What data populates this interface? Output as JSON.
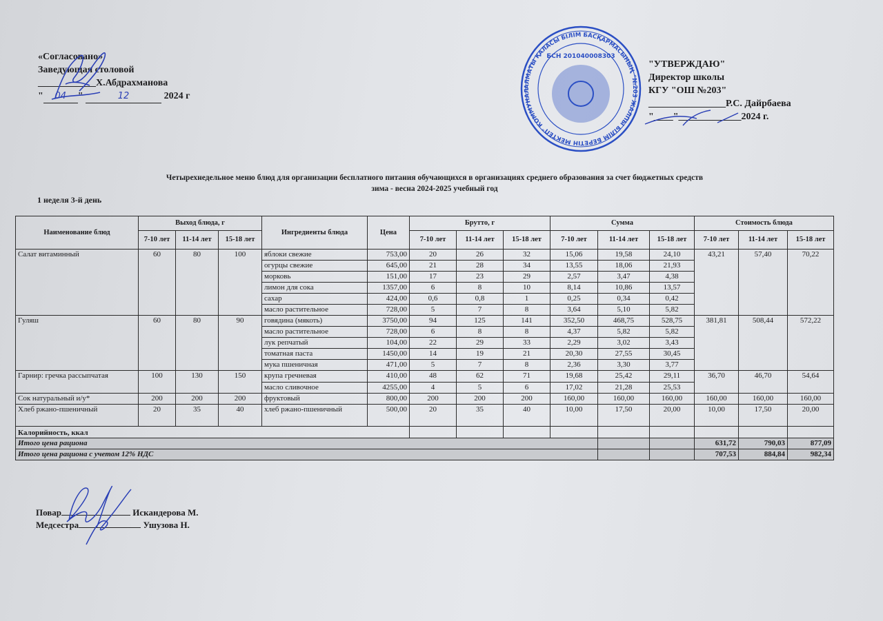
{
  "approval_left": {
    "line1": "«Согласовано»",
    "line2": "Заведующая столовой",
    "line3": "____________Х.Абдрахманова",
    "day": "04",
    "month": "12",
    "line4_prefix": "\"",
    "line4_mid": "\" ",
    "line4_suffix": " 2024 г"
  },
  "approval_right": {
    "line1": "\"УТВЕРЖДАЮ\"",
    "line2": "Директор школы",
    "line3": "КГУ \"ОШ №203\"",
    "line4": "________________Р.С. Дайрбаева",
    "line5": "\"____\"_____________2024 г."
  },
  "stamp": {
    "outer_text": "АЛМАТЫ ҚАЛАСЫ БІЛІМ БАСҚАРМАСЫНЫҢ \"№203 ЖАЛПЫ БІЛІМ БЕРЕТІН МЕКТЕП\" КОММУНАЛДЫҚ МЕМЛЕКЕТТІК МЕКЕМЕСІ",
    "bin": "БСН 201040008303",
    "color": "#2b4fc4"
  },
  "title_line1": "Четырехнедельное меню блюд для организации бесплатного питания обучающихся в организациях среднего образования за счет бюджетных средств",
  "title_line2": "зима - весна 2024-2025 учебный год",
  "week_day": "1 неделя 3-й день",
  "table": {
    "headers": {
      "dish": "Наименование блюд",
      "output": "Выход блюда, г",
      "ingredients": "Ингредиенты блюда",
      "price": "Цена",
      "brutto": "Брутто, г",
      "sum": "Сумма",
      "cost": "Стоимость блюда",
      "ages": [
        "7-10 лет",
        "11-14 лет",
        "15-18 лет"
      ]
    },
    "dishes": [
      {
        "name": "Салат витаминный",
        "output": [
          "60",
          "80",
          "100"
        ],
        "cost": [
          "43,21",
          "57,40",
          "70,22"
        ],
        "ingredients": [
          {
            "name": "яблоки свежие",
            "price": "753,00",
            "brutto": [
              "20",
              "26",
              "32"
            ],
            "sum": [
              "15,06",
              "19,58",
              "24,10"
            ]
          },
          {
            "name": "огурцы свежие",
            "price": "645,00",
            "brutto": [
              "21",
              "28",
              "34"
            ],
            "sum": [
              "13,55",
              "18,06",
              "21,93"
            ]
          },
          {
            "name": "морковь",
            "price": "151,00",
            "brutto": [
              "17",
              "23",
              "29"
            ],
            "sum": [
              "2,57",
              "3,47",
              "4,38"
            ]
          },
          {
            "name": "лимон для сока",
            "price": "1357,00",
            "brutto": [
              "6",
              "8",
              "10"
            ],
            "sum": [
              "8,14",
              "10,86",
              "13,57"
            ]
          },
          {
            "name": "сахар",
            "price": "424,00",
            "brutto": [
              "0,6",
              "0,8",
              "1"
            ],
            "sum": [
              "0,25",
              "0,34",
              "0,42"
            ]
          },
          {
            "name": "масло растительное",
            "price": "728,00",
            "brutto": [
              "5",
              "7",
              "8"
            ],
            "sum": [
              "3,64",
              "5,10",
              "5,82"
            ]
          }
        ]
      },
      {
        "name": "Гуляш",
        "output": [
          "60",
          "80",
          "90"
        ],
        "cost": [
          "381,81",
          "508,44",
          "572,22"
        ],
        "ingredients": [
          {
            "name": "говядина (мякоть)",
            "price": "3750,00",
            "brutto": [
              "94",
              "125",
              "141"
            ],
            "sum": [
              "352,50",
              "468,75",
              "528,75"
            ]
          },
          {
            "name": "масло растительное",
            "price": "728,00",
            "brutto": [
              "6",
              "8",
              "8"
            ],
            "sum": [
              "4,37",
              "5,82",
              "5,82"
            ]
          },
          {
            "name": "лук репчатый",
            "price": "104,00",
            "brutto": [
              "22",
              "29",
              "33"
            ],
            "sum": [
              "2,29",
              "3,02",
              "3,43"
            ]
          },
          {
            "name": "томатная паста",
            "price": "1450,00",
            "brutto": [
              "14",
              "19",
              "21"
            ],
            "sum": [
              "20,30",
              "27,55",
              "30,45"
            ]
          },
          {
            "name": "мука пшеничная",
            "price": "471,00",
            "brutto": [
              "5",
              "7",
              "8"
            ],
            "sum": [
              "2,36",
              "3,30",
              "3,77"
            ]
          }
        ]
      },
      {
        "name": "Гарнир: гречка рассыпчатая",
        "output": [
          "100",
          "130",
          "150"
        ],
        "cost": [
          "36,70",
          "46,70",
          "54,64"
        ],
        "ingredients": [
          {
            "name": "крупа гречневая",
            "price": "410,00",
            "brutto": [
              "48",
              "62",
              "71"
            ],
            "sum": [
              "19,68",
              "25,42",
              "29,11"
            ]
          },
          {
            "name": "масло сливочное",
            "price": "4255,00",
            "brutto": [
              "4",
              "5",
              "6"
            ],
            "sum": [
              "17,02",
              "21,28",
              "25,53"
            ]
          }
        ]
      },
      {
        "name": "Сок натуральный и/у*",
        "output": [
          "200",
          "200",
          "200"
        ],
        "cost": [
          "160,00",
          "160,00",
          "160,00"
        ],
        "ingredients": [
          {
            "name": "фруктовый",
            "price": "800,00",
            "brutto": [
              "200",
              "200",
              "200"
            ],
            "sum": [
              "160,00",
              "160,00",
              "160,00"
            ]
          }
        ]
      },
      {
        "name": "Хлеб ржано-пшеничный",
        "output": [
          "20",
          "35",
          "40"
        ],
        "cost": [
          "10,00",
          "17,50",
          "20,00"
        ],
        "ingredients": [
          {
            "name": "хлеб ржано-пшеничный",
            "price": "500,00",
            "brutto": [
              "20",
              "35",
              "40"
            ],
            "sum": [
              "10,00",
              "17,50",
              "20,00"
            ]
          }
        ]
      }
    ],
    "calories_label": "Калорийность, ккал",
    "total_label": "Итого цена рациона",
    "total_values": [
      "631,72",
      "790,03",
      "877,09"
    ],
    "total_vat_label": "Итого цена рациона с учетом 12% НДС",
    "total_vat_values": [
      "707,53",
      "884,84",
      "982,34"
    ]
  },
  "footer": {
    "cook_label": "Повар",
    "cook_name": "Искандерова М.",
    "nurse_label": "Медсестра",
    "nurse_name": "Ушузова Н."
  },
  "ink_color": "#2a3fb5"
}
